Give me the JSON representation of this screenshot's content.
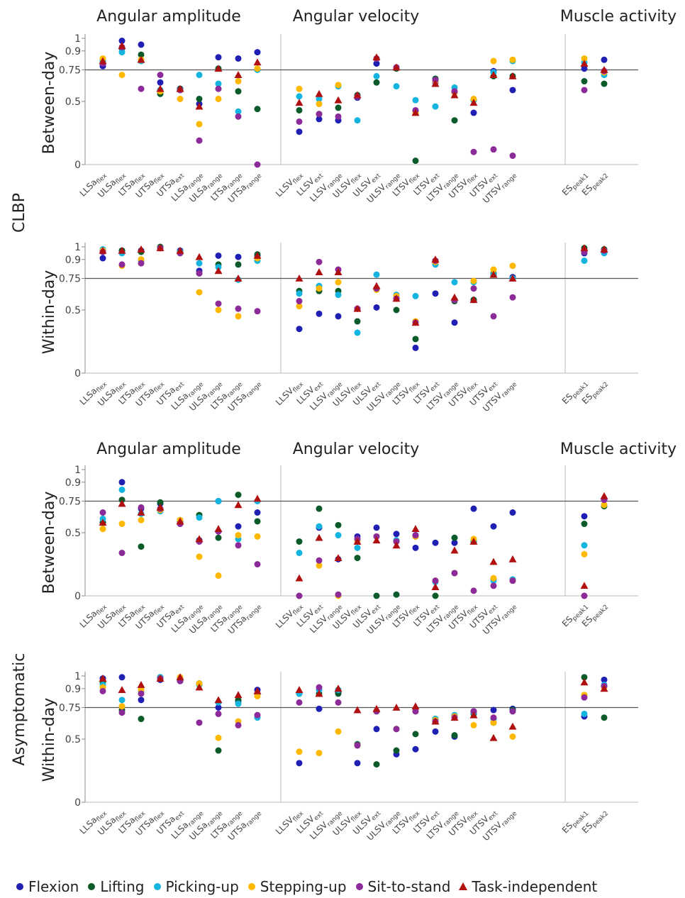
{
  "chart_data": {
    "type": "scatter",
    "groups": [
      "CLBP",
      "Asymptomatic"
    ],
    "sections": [
      "Angular amplitude",
      "Angular velocity",
      "Muscle activity"
    ],
    "reliability": [
      "Between-day",
      "Within-day"
    ],
    "yticks": [
      0,
      0.5,
      0.75,
      0.9,
      1
    ],
    "ytick_labels": [
      "0",
      "0.5",
      "0.75",
      "0.9",
      "1"
    ],
    "ylim": [
      0,
      1
    ],
    "reference_line": 0.75,
    "series": [
      {
        "name": "Flexion",
        "color": "#1f1fb4",
        "marker": "circle"
      },
      {
        "name": "Lifting",
        "color": "#0b5a2a",
        "marker": "circle"
      },
      {
        "name": "Picking-up",
        "color": "#14b4e0",
        "marker": "circle"
      },
      {
        "name": "Stepping-up",
        "color": "#ffb800",
        "marker": "circle"
      },
      {
        "name": "Sit-to-stand",
        "color": "#8b2a98",
        "marker": "circle"
      },
      {
        "name": "Task-independent",
        "color": "#b01010",
        "marker": "triangle"
      }
    ],
    "panels": [
      {
        "group": "CLBP",
        "reliability": "Between-day",
        "categories": [
          {
            "base": "LLSa",
            "sub": "flex"
          },
          {
            "base": "ULSa",
            "sub": "flex"
          },
          {
            "base": "LTSa",
            "sub": "flex"
          },
          {
            "base": "UTSa",
            "sub": "flex"
          },
          {
            "base": "UTSa",
            "sub": "ext"
          },
          {
            "base": "LLSa",
            "sub": "range"
          },
          {
            "base": "ULSa",
            "sub": "range"
          },
          {
            "base": "LTSa",
            "sub": "range"
          },
          {
            "base": "UTSa",
            "sub": "range"
          },
          {
            "base": "LLSV",
            "sub": "flex"
          },
          {
            "base": "LLSV",
            "sub": "ext"
          },
          {
            "base": "LLSV",
            "sub": "range"
          },
          {
            "base": "ULSV",
            "sub": "flex"
          },
          {
            "base": "ULSV",
            "sub": "ext"
          },
          {
            "base": "ULSV",
            "sub": "range"
          },
          {
            "base": "LTSV",
            "sub": "flex"
          },
          {
            "base": "LTSV",
            "sub": "ext"
          },
          {
            "base": "LTSV",
            "sub": "range"
          },
          {
            "base": "UTSV",
            "sub": "flex"
          },
          {
            "base": "UTSV",
            "sub": "ext"
          },
          {
            "base": "UTSV",
            "sub": "range"
          },
          {
            "base": "ES",
            "sub": "peak1"
          },
          {
            "base": "ES",
            "sub": "peak2"
          }
        ],
        "values": {
          "Flexion": [
            0.78,
            0.98,
            0.95,
            0.65,
            0.6,
            0.48,
            0.85,
            0.84,
            0.89,
            0.26,
            0.36,
            0.35,
            0.53,
            0.8,
            null,
            0.42,
            0.65,
            0.57,
            0.41,
            0.74,
            0.59,
            0.76,
            0.83
          ],
          "Lifting": [
            0.82,
            0.92,
            0.87,
            0.56,
            0.6,
            0.52,
            0.76,
            0.58,
            0.44,
            0.43,
            0.4,
            0.45,
            0.55,
            0.65,
            0.76,
            0.03,
            0.68,
            0.35,
            0.51,
            0.7,
            0.7,
            0.66,
            0.64
          ],
          "Picking-up": [
            0.82,
            0.89,
            0.82,
            0.59,
            0.59,
            0.71,
            0.64,
            0.42,
            0.75,
            0.54,
            0.52,
            0.62,
            0.35,
            0.7,
            0.62,
            0.51,
            0.46,
            0.61,
            0.51,
            0.73,
            0.82,
            0.81,
            0.71
          ],
          "Stepping-up": [
            0.84,
            0.71,
            0.83,
            0.58,
            0.52,
            0.32,
            0.52,
            0.66,
            0.76,
            0.6,
            0.48,
            0.63,
            0.54,
            0.84,
            0.77,
            0.41,
            0.66,
            0.57,
            0.52,
            0.82,
            0.83,
            0.84,
            0.73
          ],
          "Sit-to-stand": [
            0.8,
            0.93,
            0.6,
            0.71,
            0.59,
            0.19,
            0.6,
            0.38,
            0.0,
            0.34,
            0.4,
            0.38,
            0.54,
            0.84,
            0.77,
            0.43,
            0.67,
            0.58,
            0.1,
            0.12,
            0.07,
            0.59,
            0.74
          ],
          "Task-independent": [
            0.82,
            0.94,
            0.83,
            0.6,
            0.6,
            0.46,
            0.76,
            0.71,
            0.81,
            0.49,
            0.56,
            0.51,
            0.55,
            0.85,
            0.77,
            0.41,
            0.64,
            0.55,
            0.49,
            0.71,
            0.7,
            0.8,
            0.75
          ]
        }
      },
      {
        "group": "CLBP",
        "reliability": "Within-day",
        "categories": [
          {
            "base": "LLSa",
            "sub": "flex"
          },
          {
            "base": "ULSa",
            "sub": "flex"
          },
          {
            "base": "LTSa",
            "sub": "flex"
          },
          {
            "base": "UTSa",
            "sub": "flex"
          },
          {
            "base": "UTSa",
            "sub": "ext"
          },
          {
            "base": "LLSa",
            "sub": "range"
          },
          {
            "base": "ULSa",
            "sub": "range"
          },
          {
            "base": "LTSa",
            "sub": "range"
          },
          {
            "base": "UTSa",
            "sub": "range"
          },
          {
            "base": "LLSV",
            "sub": "flex"
          },
          {
            "base": "LLSV",
            "sub": "ext"
          },
          {
            "base": "LLSV",
            "sub": "range"
          },
          {
            "base": "ULSV",
            "sub": "flex"
          },
          {
            "base": "ULSV",
            "sub": "ext"
          },
          {
            "base": "ULSV",
            "sub": "range"
          },
          {
            "base": "LTSV",
            "sub": "flex"
          },
          {
            "base": "LTSV",
            "sub": "ext"
          },
          {
            "base": "LTSV",
            "sub": "range"
          },
          {
            "base": "UTSV",
            "sub": "flex"
          },
          {
            "base": "UTSV",
            "sub": "ext"
          },
          {
            "base": "UTSV",
            "sub": "range"
          },
          {
            "base": "ES",
            "sub": "peak1"
          },
          {
            "base": "ES",
            "sub": "peak2"
          }
        ],
        "values": {
          "Flexion": [
            0.91,
            0.97,
            0.97,
            0.99,
            0.97,
            0.81,
            0.93,
            0.92,
            0.93,
            0.35,
            0.47,
            0.45,
            0.51,
            0.52,
            0.59,
            0.2,
            0.63,
            0.4,
            0.58,
            0.78,
            0.76,
            0.95,
            0.96
          ],
          "Lifting": [
            0.97,
            0.97,
            0.96,
            1.0,
            0.96,
            0.79,
            0.86,
            0.86,
            0.94,
            0.65,
            0.65,
            0.65,
            0.41,
            0.67,
            0.5,
            0.27,
            0.89,
            0.57,
            0.58,
            0.79,
            0.75,
            0.99,
            0.98
          ],
          "Picking-up": [
            0.98,
            0.95,
            0.89,
            0.99,
            0.96,
            0.87,
            0.84,
            0.74,
            0.89,
            0.63,
            0.69,
            0.62,
            0.32,
            0.78,
            0.62,
            0.61,
            0.86,
            0.72,
            0.72,
            0.78,
            0.75,
            0.89,
            0.95
          ],
          "Stepping-up": [
            0.97,
            0.85,
            0.9,
            0.99,
            0.95,
            0.64,
            0.5,
            0.45,
            0.91,
            0.53,
            0.67,
            0.72,
            0.51,
            0.66,
            0.61,
            0.41,
            0.88,
            0.58,
            0.73,
            0.82,
            0.85,
            0.96,
            0.97
          ],
          "Sit-to-stand": [
            0.96,
            0.86,
            0.87,
            0.99,
            0.95,
            0.79,
            0.55,
            0.51,
            0.49,
            0.57,
            0.88,
            0.82,
            0.51,
            0.67,
            0.59,
            0.4,
            0.89,
            0.58,
            0.67,
            0.45,
            0.6,
            0.96,
            0.97
          ],
          "Task-independent": [
            0.97,
            0.97,
            0.98,
            0.99,
            0.97,
            0.92,
            0.81,
            0.75,
            0.93,
            0.75,
            0.8,
            0.8,
            0.51,
            0.69,
            0.59,
            0.4,
            0.9,
            0.6,
            0.58,
            0.78,
            0.75,
            0.99,
            0.98
          ]
        }
      },
      {
        "group": "Asymptomatic",
        "reliability": "Between-day",
        "categories": [
          {
            "base": "LLSa",
            "sub": "flex"
          },
          {
            "base": "ULSa",
            "sub": "flex"
          },
          {
            "base": "LTSa",
            "sub": "flex"
          },
          {
            "base": "UTSa",
            "sub": "flex"
          },
          {
            "base": "UTSa",
            "sub": "ext"
          },
          {
            "base": "LLSa",
            "sub": "range"
          },
          {
            "base": "ULSa",
            "sub": "range"
          },
          {
            "base": "LTSa",
            "sub": "range"
          },
          {
            "base": "UTSa",
            "sub": "range"
          },
          {
            "base": "LLSV",
            "sub": "flex"
          },
          {
            "base": "LLSV",
            "sub": "ext"
          },
          {
            "base": "LLSV",
            "sub": "range"
          },
          {
            "base": "ULSV",
            "sub": "flex"
          },
          {
            "base": "ULSV",
            "sub": "ext"
          },
          {
            "base": "ULSV",
            "sub": "range"
          },
          {
            "base": "LTSV",
            "sub": "flex"
          },
          {
            "base": "LTSV",
            "sub": "ext"
          },
          {
            "base": "LTSV",
            "sub": "range"
          },
          {
            "base": "UTSV",
            "sub": "flex"
          },
          {
            "base": "UTSV",
            "sub": "ext"
          },
          {
            "base": "UTSV",
            "sub": "range"
          },
          {
            "base": "ES",
            "sub": "peak1"
          },
          {
            "base": "ES",
            "sub": "peak2"
          }
        ],
        "values": {
          "Flexion": [
            0.58,
            0.9,
            0.69,
            0.73,
            0.59,
            0.44,
            0.75,
            0.55,
            0.66,
            0.0,
            0.54,
            0.29,
            0.47,
            0.54,
            0.49,
            0.38,
            0.42,
            0.42,
            0.69,
            0.55,
            0.66,
            0.63,
            0.77
          ],
          "Lifting": [
            0.58,
            0.76,
            0.39,
            0.74,
            0.59,
            0.64,
            0.46,
            0.8,
            0.59,
            0.43,
            0.69,
            0.56,
            0.3,
            0.0,
            0.01,
            0.47,
            0.0,
            0.46,
            0.43,
            0.13,
            0.12,
            0.57,
            0.71
          ],
          "Picking-up": [
            0.61,
            0.84,
            0.65,
            0.67,
            0.6,
            0.62,
            0.75,
            0.45,
            0.75,
            0.34,
            0.55,
            0.48,
            0.38,
            0.47,
            0.44,
            0.48,
            0.11,
            0.18,
            0.44,
            0.12,
            0.13,
            0.4,
            0.72
          ],
          "Stepping-up": [
            0.53,
            0.57,
            0.6,
            0.68,
            0.6,
            0.31,
            0.16,
            0.48,
            0.47,
            0.0,
            0.24,
            0.0,
            0.44,
            0.47,
            0.43,
            0.47,
            0.12,
            0.18,
            0.45,
            0.14,
            0.12,
            0.33,
            0.72
          ],
          "Sit-to-stand": [
            0.66,
            0.34,
            0.7,
            0.69,
            0.57,
            0.43,
            0.51,
            0.4,
            0.25,
            0.0,
            0.28,
            0.01,
            0.45,
            0.47,
            0.43,
            0.48,
            0.12,
            0.18,
            0.04,
            0.08,
            0.12,
            0.0,
            0.76
          ],
          "Task-independent": [
            0.58,
            0.73,
            0.66,
            0.7,
            0.59,
            0.45,
            0.53,
            0.72,
            0.77,
            0.14,
            0.46,
            0.3,
            0.43,
            0.44,
            0.4,
            0.53,
            0.07,
            0.36,
            0.43,
            0.27,
            0.29,
            0.08,
            0.79
          ]
        }
      },
      {
        "group": "Asymptomatic",
        "reliability": "Within-day",
        "categories": [
          {
            "base": "LLSa",
            "sub": "flex"
          },
          {
            "base": "ULSa",
            "sub": "flex"
          },
          {
            "base": "LTSa",
            "sub": "flex"
          },
          {
            "base": "UTSa",
            "sub": "flex"
          },
          {
            "base": "UTSa",
            "sub": "ext"
          },
          {
            "base": "LLSa",
            "sub": "range"
          },
          {
            "base": "ULSa",
            "sub": "range"
          },
          {
            "base": "LTSa",
            "sub": "range"
          },
          {
            "base": "UTSa",
            "sub": "range"
          },
          {
            "base": "LLSV",
            "sub": "flex"
          },
          {
            "base": "LLSV",
            "sub": "ext"
          },
          {
            "base": "LLSV",
            "sub": "range"
          },
          {
            "base": "ULSV",
            "sub": "flex"
          },
          {
            "base": "ULSV",
            "sub": "ext"
          },
          {
            "base": "ULSV",
            "sub": "range"
          },
          {
            "base": "LTSV",
            "sub": "flex"
          },
          {
            "base": "LTSV",
            "sub": "ext"
          },
          {
            "base": "LTSV",
            "sub": "range"
          },
          {
            "base": "UTSV",
            "sub": "flex"
          },
          {
            "base": "UTSV",
            "sub": "ext"
          },
          {
            "base": "UTSV",
            "sub": "range"
          },
          {
            "base": "ES",
            "sub": "peak1"
          },
          {
            "base": "ES",
            "sub": "peak2"
          }
        ],
        "values": {
          "Flexion": [
            0.98,
            0.99,
            0.81,
            0.97,
            0.96,
            0.94,
            0.75,
            0.8,
            0.89,
            0.31,
            0.74,
            0.87,
            0.31,
            0.58,
            0.38,
            0.42,
            0.56,
            0.52,
            0.72,
            0.73,
            0.74,
            0.68,
            0.97
          ],
          "Lifting": [
            0.95,
            0.73,
            0.66,
            0.99,
            0.98,
            0.94,
            0.41,
            0.81,
            0.86,
            0.86,
            0.86,
            0.86,
            0.46,
            0.3,
            0.41,
            0.54,
            0.66,
            0.53,
            0.7,
            0.63,
            0.73,
            0.99,
            0.67
          ],
          "Picking-up": [
            0.93,
            0.81,
            0.88,
            0.99,
            0.98,
            0.93,
            0.79,
            0.78,
            0.67,
            0.86,
            0.89,
            0.89,
            0.45,
            0.72,
            0.58,
            0.72,
            0.66,
            0.69,
            0.71,
            0.66,
            0.72,
            0.7,
            0.93
          ],
          "Stepping-up": [
            0.91,
            0.76,
            0.89,
            0.98,
            0.99,
            0.94,
            0.51,
            0.64,
            0.84,
            0.4,
            0.39,
            0.56,
            0.45,
            0.72,
            0.58,
            0.72,
            0.65,
            0.68,
            0.61,
            0.63,
            0.52,
            0.85,
            0.91
          ],
          "Sit-to-stand": [
            0.88,
            0.71,
            0.86,
            0.98,
            0.96,
            0.63,
            0.7,
            0.61,
            0.69,
            0.79,
            0.91,
            0.79,
            0.45,
            0.72,
            0.58,
            0.72,
            0.64,
            0.67,
            0.72,
            0.67,
            0.72,
            0.83,
            0.92
          ],
          "Task-independent": [
            0.98,
            0.89,
            0.93,
            0.98,
            0.99,
            0.91,
            0.81,
            0.85,
            0.88,
            0.89,
            0.86,
            0.9,
            0.73,
            0.74,
            0.75,
            0.76,
            0.64,
            0.67,
            0.69,
            0.51,
            0.6,
            0.95,
            0.9
          ]
        }
      }
    ]
  }
}
